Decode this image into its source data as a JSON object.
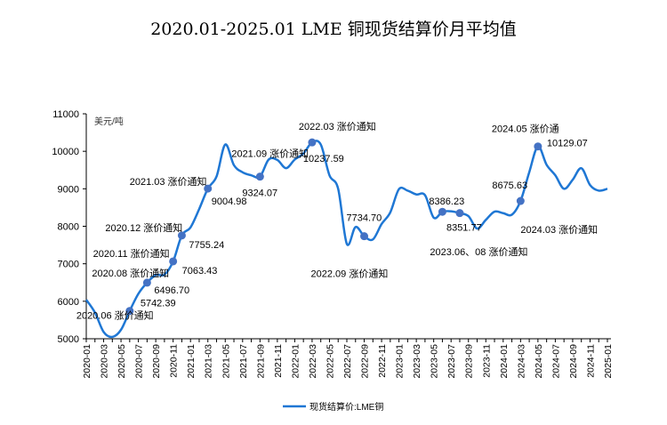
{
  "chart_data": {
    "type": "line",
    "title": "2020.01-2025.01 LME 铜现货结算价月平均值",
    "ylabel": "美元/吨",
    "xlabel": "",
    "ylim": [
      5000,
      11000
    ],
    "yticks": [
      5000,
      6000,
      7000,
      8000,
      9000,
      10000,
      11000
    ],
    "grid": false,
    "legend": {
      "position": "bottom",
      "entries": [
        "现货结算价:LME铜"
      ]
    },
    "color": "#1f77d4",
    "marker_color": "#4472c4",
    "x": [
      "2020-01",
      "2020-02",
      "2020-03",
      "2020-04",
      "2020-05",
      "2020-06",
      "2020-07",
      "2020-08",
      "2020-09",
      "2020-10",
      "2020-11",
      "2020-12",
      "2021-01",
      "2021-02",
      "2021-03",
      "2021-04",
      "2021-05",
      "2021-06",
      "2021-07",
      "2021-08",
      "2021-09",
      "2021-10",
      "2021-11",
      "2021-12",
      "2022-01",
      "2022-02",
      "2022-03",
      "2022-04",
      "2022-05",
      "2022-06",
      "2022-07",
      "2022-08",
      "2022-09",
      "2022-10",
      "2022-11",
      "2022-12",
      "2023-01",
      "2023-02",
      "2023-03",
      "2023-04",
      "2023-05",
      "2023-06",
      "2023-07",
      "2023-08",
      "2023-09",
      "2023-10",
      "2023-11",
      "2023-12",
      "2024-01",
      "2024-02",
      "2024-03",
      "2024-04",
      "2024-05",
      "2024-06",
      "2024-07",
      "2024-08",
      "2024-09",
      "2024-10",
      "2024-11",
      "2024-12",
      "2025-01"
    ],
    "series": [
      {
        "name": "现货结算价:LME铜",
        "values": [
          6040,
          5700,
          5180,
          5050,
          5240,
          5742.39,
          6200,
          6496.7,
          6700,
          6710,
          7063.43,
          7755.24,
          7970,
          8460,
          9004.98,
          9330,
          10180,
          9630,
          9440,
          9360,
          9324.07,
          9780,
          9770,
          9550,
          9780,
          9940,
          10237.59,
          10180,
          9360,
          9000,
          7530,
          7980,
          7734.7,
          7650,
          8060,
          8370,
          8990,
          8950,
          8850,
          8830,
          8230,
          8386.23,
          8400,
          8351.77,
          8270,
          7940,
          8170,
          8390,
          8350,
          8310,
          8675.63,
          9440,
          10129.07,
          9640,
          9360,
          9000,
          9240,
          9550,
          9100,
          8950,
          9000
        ]
      }
    ],
    "annotations": [
      {
        "month": "2020-06",
        "label": "2020.06 涨价通知",
        "value_label": "5742.39"
      },
      {
        "month": "2020-08",
        "label": "2020.08 涨价通知",
        "value_label": "6496.70"
      },
      {
        "month": "2020-11",
        "label": "2020.11 涨价通知",
        "value_label": "7063.43"
      },
      {
        "month": "2020-12",
        "label": "2020.12 涨价通知",
        "value_label": "7755.24"
      },
      {
        "month": "2021-03",
        "label": "2021.03 涨价通知",
        "value_label": "9004.98"
      },
      {
        "month": "2021-09",
        "label": "2021.09 涨价通知",
        "value_label": "9324.07"
      },
      {
        "month": "2022-03",
        "label": "2022.03 涨价通知",
        "value_label": "10237.59"
      },
      {
        "month": "2022-09",
        "label": "2022.09 涨价通知",
        "value_label": "7734.70"
      },
      {
        "month": "2023-06",
        "label": "2023.06、08 涨价通知",
        "value_label": "8386.23"
      },
      {
        "month": "2023-08",
        "label": "",
        "value_label": "8351.77"
      },
      {
        "month": "2024-03",
        "label": "2024.03 涨价通知",
        "value_label": "8675.63"
      },
      {
        "month": "2024-05",
        "label": "2024.05 涨价通",
        "value_label": "10129.07"
      }
    ]
  }
}
